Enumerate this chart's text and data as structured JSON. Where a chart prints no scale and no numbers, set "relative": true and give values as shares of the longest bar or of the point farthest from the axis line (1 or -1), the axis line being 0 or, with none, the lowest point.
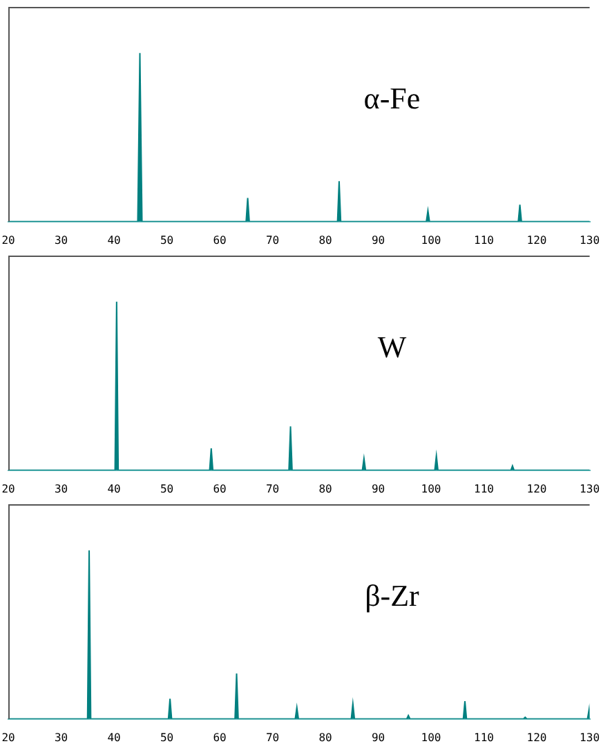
{
  "chart_data": [
    {
      "type": "area",
      "title": "α-Fe",
      "color": "#008080",
      "relative": true,
      "xlim": [
        20,
        130
      ],
      "xticks": [
        20,
        30,
        40,
        50,
        60,
        70,
        80,
        90,
        100,
        110,
        120,
        130
      ],
      "x": [
        20,
        44.5,
        44.9,
        45.3,
        65.0,
        65.3,
        65.6,
        82.3,
        82.6,
        82.9,
        99.1,
        99.4,
        99.7,
        116.5,
        116.8,
        117.1,
        130
      ],
      "values": [
        0,
        0,
        1,
        0,
        0,
        0.14,
        0,
        0,
        0.24,
        0,
        0,
        0.065,
        0,
        0,
        0.1,
        0,
        0
      ]
    },
    {
      "type": "area",
      "title": "W",
      "color": "#008080",
      "relative": true,
      "xlim": [
        20,
        130
      ],
      "xticks": [
        20,
        30,
        40,
        50,
        60,
        70,
        80,
        90,
        100,
        110,
        120,
        130
      ],
      "x": [
        20,
        40.2,
        40.5,
        40.8,
        58.1,
        58.4,
        58.7,
        73.1,
        73.4,
        73.7,
        87.0,
        87.3,
        87.6,
        100.7,
        101.0,
        101.3,
        115.1,
        115.4,
        115.7,
        130
      ],
      "values": [
        0,
        0,
        1,
        0,
        0,
        0.13,
        0,
        0,
        0.26,
        0,
        0,
        0.07,
        0,
        0,
        0.086,
        0,
        0,
        0.026,
        0,
        0
      ]
    },
    {
      "type": "area",
      "title": "β-Zr",
      "color": "#008080",
      "relative": true,
      "xlim": [
        20,
        130
      ],
      "xticks": [
        20,
        30,
        40,
        50,
        60,
        70,
        80,
        90,
        100,
        110,
        120,
        130
      ],
      "x": [
        20,
        35.0,
        35.3,
        35.6,
        50.3,
        50.6,
        50.9,
        62.9,
        63.2,
        63.5,
        74.3,
        74.6,
        74.9,
        84.9,
        85.2,
        85.5,
        95.4,
        95.7,
        96.0,
        106.1,
        106.4,
        106.7,
        117.5,
        117.8,
        118.1,
        129.6,
        129.9,
        130
      ],
      "values": [
        0,
        0,
        1,
        0,
        0,
        0.12,
        0,
        0,
        0.27,
        0,
        0,
        0.068,
        0,
        0,
        0.09,
        0,
        0,
        0.02,
        0,
        0,
        0.105,
        0,
        0,
        0.01,
        0,
        0,
        0.057,
        0
      ]
    }
  ]
}
